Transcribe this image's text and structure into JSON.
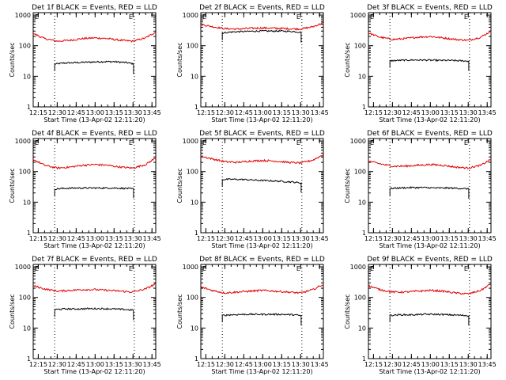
{
  "figure": {
    "common": {
      "xlabel": "Start Time (13-Apr-02 12:11:20)",
      "ylabel": "Counts/sec",
      "xticks": [
        "12:15",
        "12:30",
        "12:45",
        "13:00",
        "13:15",
        "13:30",
        "13:45"
      ],
      "yticks": [
        "1",
        "10",
        "100",
        "1000"
      ],
      "corner_left": "E",
      "corner_right": "E",
      "colors": {
        "events": "#000000",
        "lld": "#e00000",
        "axes": "#000000"
      }
    }
  },
  "chart_data": [
    {
      "type": "line",
      "title": "Det 1f BLACK = Events, RED = LLD",
      "yscale": "log",
      "ylim": [
        1,
        1200
      ],
      "xlim": [
        "12:11",
        "13:48"
      ],
      "dotted_x": [
        "12:28",
        "13:31"
      ],
      "series": [
        {
          "name": "Events",
          "color": "#000000",
          "x": [
            "12:28",
            "12:35",
            "12:45",
            "12:55",
            "13:05",
            "13:15",
            "13:25",
            "13:31"
          ],
          "values": [
            25,
            27,
            28,
            29,
            30,
            30,
            28,
            25
          ]
        },
        {
          "name": "LLD",
          "color": "#e00000",
          "x": [
            "12:11",
            "12:20",
            "12:30",
            "12:40",
            "12:50",
            "13:00",
            "13:10",
            "13:20",
            "13:30",
            "13:40",
            "13:48"
          ],
          "values": [
            250,
            170,
            140,
            150,
            170,
            180,
            170,
            150,
            140,
            180,
            280
          ]
        }
      ]
    },
    {
      "type": "line",
      "title": "Det 2f BLACK = Events, RED = LLD",
      "yscale": "log",
      "ylim": [
        1,
        1200
      ],
      "xlim": [
        "12:11",
        "13:48"
      ],
      "dotted_x": [
        "12:28",
        "13:31"
      ],
      "series": [
        {
          "name": "Events",
          "color": "#000000",
          "x": [
            "12:28",
            "12:35",
            "12:45",
            "12:55",
            "13:05",
            "13:15",
            "13:25",
            "13:31"
          ],
          "values": [
            260,
            280,
            290,
            300,
            300,
            300,
            290,
            270
          ]
        },
        {
          "name": "LLD",
          "color": "#e00000",
          "x": [
            "12:11",
            "12:20",
            "12:30",
            "12:40",
            "12:50",
            "13:00",
            "13:10",
            "13:20",
            "13:30",
            "13:40",
            "13:48"
          ],
          "values": [
            500,
            420,
            360,
            350,
            370,
            380,
            370,
            360,
            350,
            420,
            560
          ]
        }
      ]
    },
    {
      "type": "line",
      "title": "Det 3f BLACK = Events, RED = LLD",
      "yscale": "log",
      "ylim": [
        1,
        1200
      ],
      "xlim": [
        "12:11",
        "13:48"
      ],
      "dotted_x": [
        "12:28",
        "13:31"
      ],
      "series": [
        {
          "name": "Events",
          "color": "#000000",
          "x": [
            "12:28",
            "12:35",
            "12:45",
            "12:55",
            "13:05",
            "13:15",
            "13:25",
            "13:31"
          ],
          "values": [
            32,
            33,
            34,
            34,
            33,
            33,
            32,
            31
          ]
        },
        {
          "name": "LLD",
          "color": "#e00000",
          "x": [
            "12:11",
            "12:20",
            "12:30",
            "12:40",
            "12:50",
            "13:00",
            "13:10",
            "13:20",
            "13:30",
            "13:40",
            "13:48"
          ],
          "values": [
            260,
            190,
            160,
            170,
            190,
            200,
            180,
            160,
            150,
            190,
            300
          ]
        }
      ]
    },
    {
      "type": "line",
      "title": "Det 4f BLACK = Events, RED = LLD",
      "yscale": "log",
      "ylim": [
        1,
        1200
      ],
      "xlim": [
        "12:11",
        "13:48"
      ],
      "dotted_x": [
        "12:28",
        "13:31"
      ],
      "series": [
        {
          "name": "Events",
          "color": "#000000",
          "x": [
            "12:28",
            "12:35",
            "12:45",
            "12:55",
            "13:05",
            "13:15",
            "13:25",
            "13:31"
          ],
          "values": [
            27,
            28,
            29,
            29,
            29,
            29,
            28,
            27
          ]
        },
        {
          "name": "LLD",
          "color": "#e00000",
          "x": [
            "12:11",
            "12:20",
            "12:30",
            "12:40",
            "12:50",
            "13:00",
            "13:10",
            "13:20",
            "13:30",
            "13:40",
            "13:48"
          ],
          "values": [
            250,
            160,
            130,
            140,
            160,
            170,
            160,
            140,
            130,
            170,
            280
          ]
        }
      ]
    },
    {
      "type": "line",
      "title": "Det 5f BLACK = Events, RED = LLD",
      "yscale": "log",
      "ylim": [
        1,
        1200
      ],
      "xlim": [
        "12:11",
        "13:48"
      ],
      "dotted_x": [
        "12:28",
        "13:31"
      ],
      "series": [
        {
          "name": "Events",
          "color": "#000000",
          "x": [
            "12:28",
            "12:35",
            "12:45",
            "12:55",
            "13:05",
            "13:15",
            "13:25",
            "13:31"
          ],
          "values": [
            55,
            56,
            55,
            52,
            50,
            48,
            45,
            42
          ]
        },
        {
          "name": "LLD",
          "color": "#e00000",
          "x": [
            "12:11",
            "12:20",
            "12:30",
            "12:40",
            "12:50",
            "13:00",
            "13:10",
            "13:20",
            "13:30",
            "13:40",
            "13:48"
          ],
          "values": [
            320,
            260,
            210,
            200,
            220,
            230,
            220,
            200,
            190,
            240,
            360
          ]
        }
      ]
    },
    {
      "type": "line",
      "title": "Det 6f BLACK = Events, RED = LLD",
      "yscale": "log",
      "ylim": [
        1,
        1200
      ],
      "xlim": [
        "12:11",
        "13:48"
      ],
      "dotted_x": [
        "12:28",
        "13:31"
      ],
      "series": [
        {
          "name": "Events",
          "color": "#000000",
          "x": [
            "12:28",
            "12:35",
            "12:45",
            "12:55",
            "13:05",
            "13:15",
            "13:25",
            "13:31"
          ],
          "values": [
            28,
            29,
            30,
            30,
            29,
            29,
            28,
            27
          ]
        },
        {
          "name": "LLD",
          "color": "#e00000",
          "x": [
            "12:11",
            "12:20",
            "12:30",
            "12:40",
            "12:50",
            "13:00",
            "13:10",
            "13:20",
            "13:30",
            "13:40",
            "13:48"
          ],
          "values": [
            220,
            180,
            150,
            150,
            160,
            170,
            160,
            140,
            130,
            160,
            250
          ]
        }
      ]
    },
    {
      "type": "line",
      "title": "Det 7f BLACK = Events, RED = LLD",
      "yscale": "log",
      "ylim": [
        1,
        1200
      ],
      "xlim": [
        "12:11",
        "13:48"
      ],
      "dotted_x": [
        "12:28",
        "13:31"
      ],
      "series": [
        {
          "name": "Events",
          "color": "#000000",
          "x": [
            "12:28",
            "12:35",
            "12:45",
            "12:55",
            "13:05",
            "13:15",
            "13:25",
            "13:31"
          ],
          "values": [
            40,
            42,
            42,
            43,
            43,
            42,
            40,
            38
          ]
        },
        {
          "name": "LLD",
          "color": "#e00000",
          "x": [
            "12:11",
            "12:20",
            "12:30",
            "12:40",
            "12:50",
            "13:00",
            "13:10",
            "13:20",
            "13:30",
            "13:40",
            "13:48"
          ],
          "values": [
            240,
            190,
            160,
            170,
            180,
            180,
            170,
            160,
            150,
            190,
            280
          ]
        }
      ]
    },
    {
      "type": "line",
      "title": "Det 8f BLACK = Events, RED = LLD",
      "yscale": "log",
      "ylim": [
        1,
        1200
      ],
      "xlim": [
        "12:11",
        "13:48"
      ],
      "dotted_x": [
        "12:28",
        "13:31"
      ],
      "series": [
        {
          "name": "Events",
          "color": "#000000",
          "x": [
            "12:28",
            "12:35",
            "12:45",
            "12:55",
            "13:05",
            "13:15",
            "13:25",
            "13:31"
          ],
          "values": [
            26,
            27,
            28,
            28,
            28,
            28,
            27,
            25
          ]
        },
        {
          "name": "LLD",
          "color": "#e00000",
          "x": [
            "12:11",
            "12:20",
            "12:30",
            "12:40",
            "12:50",
            "13:00",
            "13:10",
            "13:20",
            "13:30",
            "13:40",
            "13:48"
          ],
          "values": [
            220,
            170,
            140,
            150,
            160,
            170,
            160,
            150,
            140,
            180,
            270
          ]
        }
      ]
    },
    {
      "type": "line",
      "title": "Det 9f BLACK = Events, RED = LLD",
      "yscale": "log",
      "ylim": [
        1,
        1200
      ],
      "xlim": [
        "12:11",
        "13:48"
      ],
      "dotted_x": [
        "12:28",
        "13:31"
      ],
      "series": [
        {
          "name": "Events",
          "color": "#000000",
          "x": [
            "12:28",
            "12:35",
            "12:45",
            "12:55",
            "13:05",
            "13:15",
            "13:25",
            "13:31"
          ],
          "values": [
            26,
            27,
            27,
            28,
            28,
            27,
            26,
            25
          ]
        },
        {
          "name": "LLD",
          "color": "#e00000",
          "x": [
            "12:11",
            "12:20",
            "12:30",
            "12:40",
            "12:50",
            "13:00",
            "13:10",
            "13:20",
            "13:30",
            "13:40",
            "13:48"
          ],
          "values": [
            240,
            180,
            150,
            150,
            160,
            170,
            160,
            140,
            130,
            170,
            280
          ]
        }
      ]
    }
  ]
}
